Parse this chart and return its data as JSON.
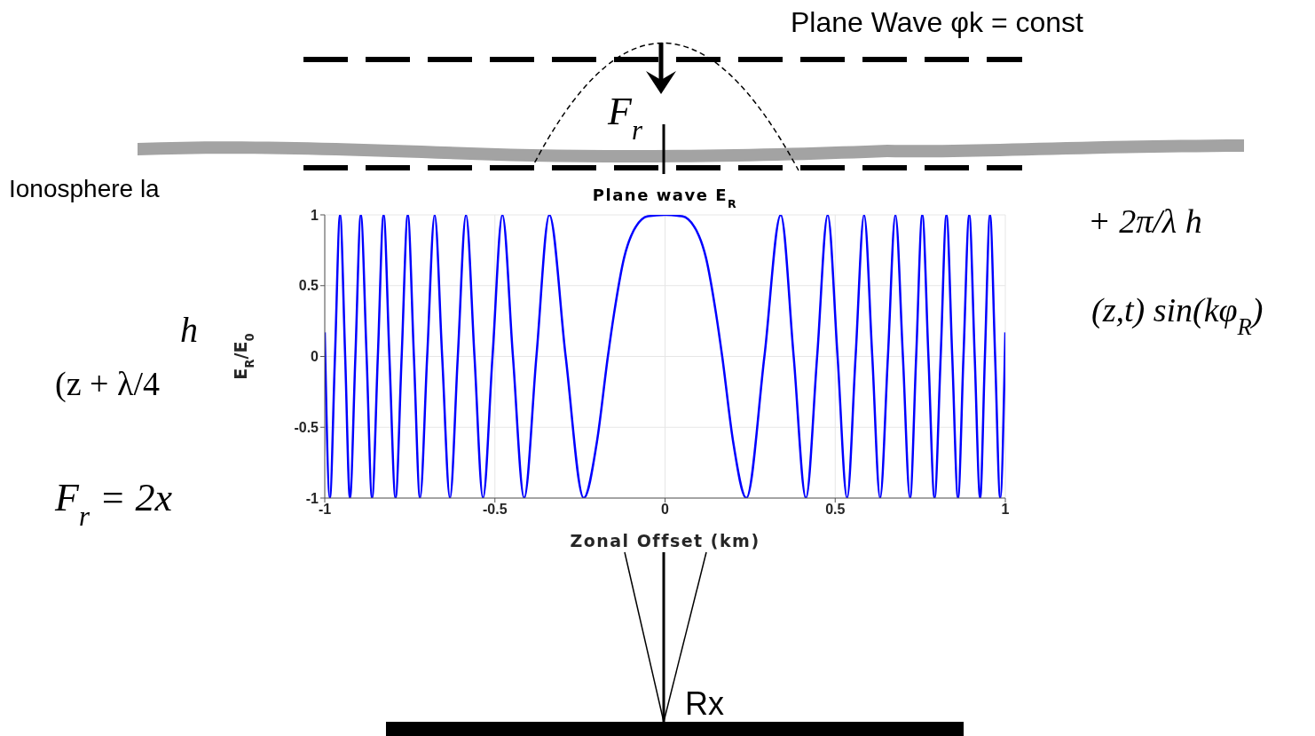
{
  "chart_data": {
    "type": "line",
    "title": "Plane wave E$_{R}$",
    "xlabel": "Zonal Offset (km)",
    "ylabel": "E$_{R}$/E$_{0}$",
    "x": [
      -1,
      -0.985,
      -0.97,
      -0.955,
      -0.94,
      -0.926,
      -0.91,
      -0.894,
      -0.877,
      -0.861,
      -0.844,
      -0.827,
      -0.81,
      -0.792,
      -0.774,
      -0.756,
      -0.738,
      -0.72,
      -0.699,
      -0.677,
      -0.655,
      -0.632,
      -0.609,
      -0.585,
      -0.56,
      -0.535,
      -0.507,
      -0.478,
      -0.447,
      -0.414,
      -0.378,
      -0.34,
      -0.292,
      -0.239,
      -0.2,
      -0.168,
      -0.15,
      -0.12,
      -0.1,
      -0.05,
      0,
      0.05,
      0.1,
      0.12,
      0.15,
      0.168,
      0.2,
      0.239,
      0.292,
      0.34,
      0.378,
      0.414,
      0.447,
      0.478,
      0.507,
      0.535,
      0.56,
      0.585,
      0.609,
      0.632,
      0.655,
      0.677,
      0.699,
      0.72,
      0.738,
      0.756,
      0.774,
      0.792,
      0.81,
      0.827,
      0.844,
      0.861,
      0.877,
      0.894,
      0.91,
      0.926,
      0.94,
      0.955,
      0.97,
      0.985,
      1
    ],
    "series": [
      {
        "color": "#0000ff",
        "values": [
          0.17,
          -1,
          0,
          1,
          0,
          -1,
          0,
          1,
          0,
          -1,
          0,
          1,
          0,
          -1,
          0,
          1,
          0,
          -1,
          0,
          1,
          0,
          -1,
          0,
          1,
          0,
          -1,
          0,
          1,
          0,
          -1,
          0,
          1,
          0,
          -1,
          -0.6,
          0,
          0.3,
          0.7,
          0.85,
          0.99,
          1,
          0.99,
          0.85,
          0.7,
          0.3,
          0,
          -0.6,
          -1,
          0,
          1,
          0,
          -1,
          0,
          1,
          0,
          -1,
          0,
          1,
          0,
          -1,
          0,
          1,
          0,
          -1,
          0,
          1,
          0,
          -1,
          0,
          1,
          0,
          -1,
          0,
          1,
          0,
          -1,
          0,
          1,
          0,
          -1,
          0.17
        ]
      }
    ],
    "xlim": [
      -1,
      1
    ],
    "xticks": [
      -1,
      -0.5,
      0,
      0.5,
      1
    ],
    "ylim": [
      -1,
      1
    ],
    "yticks": [
      -1,
      -0.5,
      0,
      0.5,
      1
    ],
    "grid": true,
    "marker": "none",
    "line_style": "solid",
    "annotations": [
      "Plane Wave φk = const",
      "Ionosphere la",
      "F$_{r}$",
      "+ 2π/λ h",
      "(z,t) sin(kφ$_{R}$)",
      "h",
      "(z + λ/4",
      "F$_{r}$ = 2x",
      "Rx"
    ]
  }
}
